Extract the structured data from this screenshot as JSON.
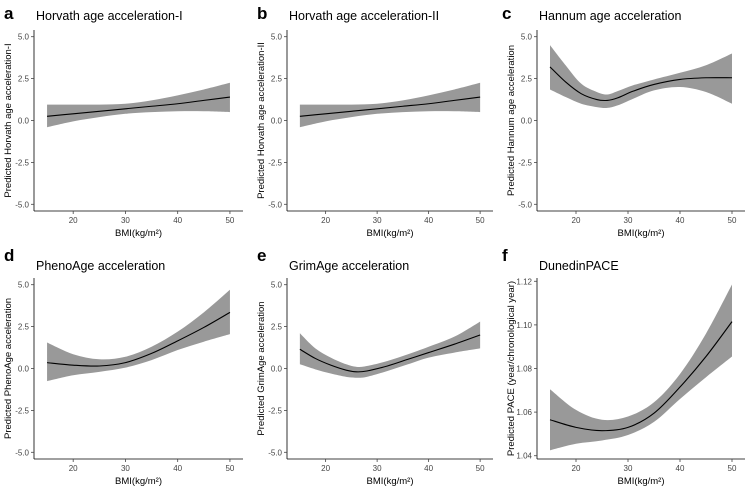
{
  "chart_data": [
    {
      "panel": "a",
      "type": "line",
      "title": "Horvath age acceleration-I",
      "xlabel": "BMI(kg/m²)",
      "ylabel": "Predicted Horvath age acceleration-I",
      "xlim": [
        12.5,
        52.5
      ],
      "ylim": [
        -5.4,
        5.4
      ],
      "xticks": [
        20,
        30,
        40,
        50
      ],
      "xtick_labels": [
        "20",
        "30",
        "40",
        "50"
      ],
      "yticks": [
        -5,
        -2.5,
        0,
        2.5,
        5
      ],
      "ytick_labels": [
        "-5.0",
        "-2.5",
        "0.0",
        "2.5",
        "5.0"
      ],
      "x": [
        15,
        20,
        25,
        30,
        35,
        40,
        45,
        50
      ],
      "y": [
        0.25,
        0.4,
        0.55,
        0.7,
        0.85,
        1.0,
        1.2,
        1.4
      ],
      "lower": [
        -0.4,
        -0.05,
        0.2,
        0.4,
        0.5,
        0.55,
        0.55,
        0.5
      ],
      "upper": [
        0.95,
        0.95,
        0.95,
        1.0,
        1.2,
        1.5,
        1.85,
        2.25
      ]
    },
    {
      "panel": "b",
      "type": "line",
      "title": "Horvath age acceleration-II",
      "xlabel": "BMI(kg/m²)",
      "ylabel": "Predicted Horvath age acceleration-II",
      "xlim": [
        12.5,
        52.5
      ],
      "ylim": [
        -5.4,
        5.4
      ],
      "xticks": [
        20,
        30,
        40,
        50
      ],
      "xtick_labels": [
        "20",
        "30",
        "40",
        "50"
      ],
      "yticks": [
        -5,
        -2.5,
        0,
        2.5,
        5
      ],
      "ytick_labels": [
        "-5.0",
        "-2.5",
        "0.0",
        "2.5",
        "5.0"
      ],
      "x": [
        15,
        20,
        25,
        30,
        35,
        40,
        45,
        50
      ],
      "y": [
        0.25,
        0.4,
        0.55,
        0.7,
        0.85,
        1.0,
        1.2,
        1.4
      ],
      "lower": [
        -0.4,
        -0.05,
        0.2,
        0.4,
        0.5,
        0.55,
        0.55,
        0.5
      ],
      "upper": [
        0.95,
        0.95,
        0.95,
        1.0,
        1.2,
        1.5,
        1.85,
        2.25
      ]
    },
    {
      "panel": "c",
      "type": "line",
      "title": "Hannum age acceleration",
      "xlabel": "BMI(kg/m²)",
      "ylabel": "Predicted Hannum age acceleration",
      "xlim": [
        12.5,
        52.5
      ],
      "ylim": [
        -5.4,
        5.4
      ],
      "xticks": [
        20,
        30,
        40,
        50
      ],
      "xtick_labels": [
        "20",
        "30",
        "40",
        "50"
      ],
      "yticks": [
        -5,
        -2.5,
        0,
        2.5,
        5
      ],
      "ytick_labels": [
        "-5.0",
        "-2.5",
        "0.0",
        "2.5",
        "5.0"
      ],
      "x": [
        15,
        18,
        21,
        24,
        26,
        28,
        31,
        35,
        40,
        45,
        50
      ],
      "y": [
        3.2,
        2.3,
        1.6,
        1.25,
        1.2,
        1.35,
        1.75,
        2.15,
        2.45,
        2.55,
        2.55
      ],
      "lower": [
        1.85,
        1.4,
        1.0,
        0.8,
        0.75,
        0.9,
        1.3,
        1.8,
        2.0,
        1.7,
        1.0
      ],
      "upper": [
        4.5,
        3.3,
        2.2,
        1.7,
        1.55,
        1.75,
        2.1,
        2.45,
        2.85,
        3.3,
        4.0
      ]
    },
    {
      "panel": "d",
      "type": "line",
      "title": "PhenoAge acceleration",
      "xlabel": "BMI(kg/m²)",
      "ylabel": "Predicted PhenoAge acceleration",
      "xlim": [
        12.5,
        52.5
      ],
      "ylim": [
        -5.4,
        5.4
      ],
      "xticks": [
        20,
        30,
        40,
        50
      ],
      "xtick_labels": [
        "20",
        "30",
        "40",
        "50"
      ],
      "yticks": [
        -5,
        -2.5,
        0,
        2.5,
        5
      ],
      "ytick_labels": [
        "-5.0",
        "-2.5",
        "0.0",
        "2.5",
        "5.0"
      ],
      "x": [
        15,
        20,
        25,
        30,
        35,
        40,
        45,
        50
      ],
      "y": [
        0.35,
        0.2,
        0.15,
        0.35,
        0.9,
        1.65,
        2.45,
        3.35
      ],
      "lower": [
        -0.75,
        -0.4,
        -0.2,
        0.05,
        0.5,
        1.1,
        1.6,
        2.05
      ],
      "upper": [
        1.55,
        0.85,
        0.55,
        0.7,
        1.3,
        2.2,
        3.35,
        4.7
      ]
    },
    {
      "panel": "e",
      "type": "line",
      "title": "GrimAge acceleration",
      "xlabel": "BMI(kg/m²)",
      "ylabel": "Predicted GrimAge acceleration",
      "xlim": [
        12.5,
        52.5
      ],
      "ylim": [
        -5.4,
        5.4
      ],
      "xticks": [
        20,
        30,
        40,
        50
      ],
      "xtick_labels": [
        "20",
        "30",
        "40",
        "50"
      ],
      "yticks": [
        -5,
        -2.5,
        0,
        2.5,
        5
      ],
      "ytick_labels": [
        "-5.0",
        "-2.5",
        "0.0",
        "2.5",
        "5.0"
      ],
      "x": [
        15,
        18,
        21,
        24,
        26,
        28,
        32,
        36,
        40,
        45,
        50
      ],
      "y": [
        1.15,
        0.6,
        0.2,
        -0.1,
        -0.2,
        -0.15,
        0.15,
        0.55,
        0.95,
        1.45,
        2.0
      ],
      "lower": [
        0.25,
        -0.05,
        -0.3,
        -0.5,
        -0.55,
        -0.5,
        -0.15,
        0.25,
        0.65,
        0.95,
        1.2
      ],
      "upper": [
        2.1,
        1.2,
        0.65,
        0.25,
        0.1,
        0.15,
        0.45,
        0.85,
        1.3,
        1.9,
        2.8
      ]
    },
    {
      "panel": "f",
      "type": "line",
      "title": "DunedinPACE",
      "xlabel": "BMI(kg/m²)",
      "ylabel": "Predicted PACE (year/chronological year)",
      "xlim": [
        12.5,
        52.5
      ],
      "ylim": [
        1.0385,
        1.1215
      ],
      "xticks": [
        20,
        30,
        40,
        50
      ],
      "xtick_labels": [
        "20",
        "30",
        "40",
        "50"
      ],
      "yticks": [
        1.04,
        1.06,
        1.08,
        1.1,
        1.12
      ],
      "ytick_labels": [
        "1.04",
        "1.06",
        "1.08",
        "1.10",
        "1.12"
      ],
      "x": [
        15,
        20,
        25,
        30,
        35,
        40,
        45,
        50
      ],
      "y": [
        1.0565,
        1.053,
        1.0515,
        1.053,
        1.0595,
        1.0715,
        1.0855,
        1.1015
      ],
      "lower": [
        1.0425,
        1.0455,
        1.047,
        1.0495,
        1.0555,
        1.066,
        1.076,
        1.0855
      ],
      "upper": [
        1.0705,
        1.061,
        1.0565,
        1.058,
        1.0645,
        1.0775,
        1.096,
        1.1185
      ]
    }
  ]
}
